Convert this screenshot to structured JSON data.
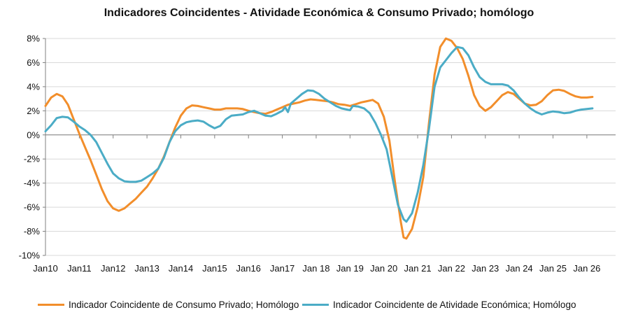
{
  "chart_data": {
    "type": "line",
    "title": "Indicadores Coincidentes  - Atividade Económica & Consumo Privado; homólogo",
    "xlabel": "",
    "ylabel": "",
    "ylim": [
      -10,
      8
    ],
    "y_ticks": [
      "-10%",
      "-8%",
      "-6%",
      "-4%",
      "-2%",
      "0%",
      "2%",
      "4%",
      "6%",
      "8%"
    ],
    "y_tick_values": [
      -10,
      -8,
      -6,
      -4,
      -2,
      0,
      2,
      4,
      6,
      8
    ],
    "x_tick_labels": [
      "Jan10",
      "Jan11",
      "Jan12",
      "Jan13",
      "Jan14",
      "Jan15",
      "Jan16",
      "Jan17",
      "Jan 18",
      "Jan 19",
      "Jan 20",
      "Jan 21",
      "Jan 22",
      "Jan 23",
      "Jan 24",
      "Jan 25",
      "Jan 26"
    ],
    "x_tick_years": [
      2010,
      2011,
      2012,
      2013,
      2014,
      2015,
      2016,
      2017,
      2018,
      2019,
      2020,
      2021,
      2022,
      2023,
      2024,
      2025,
      2026
    ],
    "grid": "horizontal",
    "legend_position": "bottom",
    "series": [
      {
        "name": "Indicador Coincidente de Consumo Privado; Homólogo",
        "color": "#F28E2B",
        "points": [
          [
            "2010-01",
            2.4
          ],
          [
            "2010-03",
            3.1
          ],
          [
            "2010-05",
            3.4
          ],
          [
            "2010-07",
            3.2
          ],
          [
            "2010-09",
            2.5
          ],
          [
            "2010-11",
            1.3
          ],
          [
            "2011-01",
            0.1
          ],
          [
            "2011-03",
            -1.0
          ],
          [
            "2011-05",
            -2.1
          ],
          [
            "2011-07",
            -3.3
          ],
          [
            "2011-09",
            -4.5
          ],
          [
            "2011-11",
            -5.5
          ],
          [
            "2012-01",
            -6.1
          ],
          [
            "2012-03",
            -6.3
          ],
          [
            "2012-05",
            -6.1
          ],
          [
            "2012-07",
            -5.7
          ],
          [
            "2012-09",
            -5.3
          ],
          [
            "2012-11",
            -4.8
          ],
          [
            "2013-01",
            -4.3
          ],
          [
            "2013-03",
            -3.6
          ],
          [
            "2013-05",
            -2.8
          ],
          [
            "2013-07",
            -1.8
          ],
          [
            "2013-09",
            -0.6
          ],
          [
            "2013-11",
            0.6
          ],
          [
            "2014-01",
            1.6
          ],
          [
            "2014-03",
            2.2
          ],
          [
            "2014-05",
            2.45
          ],
          [
            "2014-07",
            2.4
          ],
          [
            "2014-09",
            2.3
          ],
          [
            "2014-11",
            2.2
          ],
          [
            "2015-01",
            2.1
          ],
          [
            "2015-03",
            2.1
          ],
          [
            "2015-05",
            2.2
          ],
          [
            "2015-07",
            2.2
          ],
          [
            "2015-09",
            2.2
          ],
          [
            "2015-11",
            2.15
          ],
          [
            "2016-01",
            2.0
          ],
          [
            "2016-03",
            1.9
          ],
          [
            "2016-05",
            1.8
          ],
          [
            "2016-07",
            1.75
          ],
          [
            "2016-09",
            1.9
          ],
          [
            "2016-11",
            2.1
          ],
          [
            "2017-01",
            2.3
          ],
          [
            "2017-03",
            2.5
          ],
          [
            "2017-05",
            2.6
          ],
          [
            "2017-07",
            2.7
          ],
          [
            "2017-09",
            2.85
          ],
          [
            "2017-11",
            2.95
          ],
          [
            "2018-01",
            2.9
          ],
          [
            "2018-03",
            2.85
          ],
          [
            "2018-05",
            2.8
          ],
          [
            "2018-07",
            2.7
          ],
          [
            "2018-09",
            2.55
          ],
          [
            "2018-11",
            2.5
          ],
          [
            "2019-01",
            2.4
          ],
          [
            "2019-03",
            2.55
          ],
          [
            "2019-05",
            2.7
          ],
          [
            "2019-07",
            2.8
          ],
          [
            "2019-09",
            2.9
          ],
          [
            "2019-11",
            2.6
          ],
          [
            "2020-01",
            1.5
          ],
          [
            "2020-03",
            -0.5
          ],
          [
            "2020-05",
            -4.0
          ],
          [
            "2020-07",
            -7.2
          ],
          [
            "2020-08",
            -8.5
          ],
          [
            "2020-09",
            -8.6
          ],
          [
            "2020-11",
            -7.8
          ],
          [
            "2021-01",
            -6.0
          ],
          [
            "2021-03",
            -3.5
          ],
          [
            "2021-05",
            1.0
          ],
          [
            "2021-07",
            5.0
          ],
          [
            "2021-09",
            7.3
          ],
          [
            "2021-11",
            8.0
          ],
          [
            "2022-01",
            7.8
          ],
          [
            "2022-03",
            7.2
          ],
          [
            "2022-05",
            6.3
          ],
          [
            "2022-07",
            4.9
          ],
          [
            "2022-09",
            3.3
          ],
          [
            "2022-11",
            2.4
          ],
          [
            "2023-01",
            2.0
          ],
          [
            "2023-03",
            2.3
          ],
          [
            "2023-05",
            2.8
          ],
          [
            "2023-07",
            3.3
          ],
          [
            "2023-09",
            3.55
          ],
          [
            "2023-11",
            3.4
          ],
          [
            "2024-01",
            3.0
          ],
          [
            "2024-03",
            2.6
          ],
          [
            "2024-05",
            2.45
          ],
          [
            "2024-07",
            2.5
          ],
          [
            "2024-09",
            2.8
          ],
          [
            "2024-11",
            3.3
          ],
          [
            "2025-01",
            3.7
          ],
          [
            "2025-03",
            3.75
          ],
          [
            "2025-05",
            3.65
          ],
          [
            "2025-07",
            3.4
          ],
          [
            "2025-09",
            3.2
          ],
          [
            "2025-11",
            3.1
          ],
          [
            "2026-01",
            3.1
          ],
          [
            "2026-03",
            3.15
          ]
        ]
      },
      {
        "name": "Indicador Coincidente de Atividade Económica; Homólogo",
        "color": "#4BACC6",
        "points": [
          [
            "2010-01",
            0.3
          ],
          [
            "2010-03",
            0.8
          ],
          [
            "2010-05",
            1.4
          ],
          [
            "2010-07",
            1.5
          ],
          [
            "2010-09",
            1.45
          ],
          [
            "2010-11",
            1.1
          ],
          [
            "2011-01",
            0.7
          ],
          [
            "2011-03",
            0.4
          ],
          [
            "2011-05",
            0.0
          ],
          [
            "2011-07",
            -0.6
          ],
          [
            "2011-09",
            -1.5
          ],
          [
            "2011-11",
            -2.4
          ],
          [
            "2012-01",
            -3.2
          ],
          [
            "2012-03",
            -3.6
          ],
          [
            "2012-05",
            -3.85
          ],
          [
            "2012-07",
            -3.9
          ],
          [
            "2012-09",
            -3.9
          ],
          [
            "2012-11",
            -3.8
          ],
          [
            "2013-01",
            -3.5
          ],
          [
            "2013-03",
            -3.2
          ],
          [
            "2013-05",
            -2.8
          ],
          [
            "2013-07",
            -1.9
          ],
          [
            "2013-09",
            -0.6
          ],
          [
            "2013-11",
            0.3
          ],
          [
            "2014-01",
            0.8
          ],
          [
            "2014-03",
            1.05
          ],
          [
            "2014-05",
            1.15
          ],
          [
            "2014-07",
            1.2
          ],
          [
            "2014-09",
            1.1
          ],
          [
            "2014-11",
            0.8
          ],
          [
            "2015-01",
            0.55
          ],
          [
            "2015-03",
            0.75
          ],
          [
            "2015-05",
            1.3
          ],
          [
            "2015-07",
            1.6
          ],
          [
            "2015-09",
            1.65
          ],
          [
            "2015-11",
            1.7
          ],
          [
            "2016-01",
            1.9
          ],
          [
            "2016-03",
            2.0
          ],
          [
            "2016-05",
            1.8
          ],
          [
            "2016-07",
            1.6
          ],
          [
            "2016-09",
            1.55
          ],
          [
            "2016-11",
            1.75
          ],
          [
            "2017-01",
            2.0
          ],
          [
            "2017-02",
            2.3
          ],
          [
            "2017-03",
            1.9
          ],
          [
            "2017-04",
            2.6
          ],
          [
            "2017-06",
            3.0
          ],
          [
            "2017-08",
            3.4
          ],
          [
            "2017-10",
            3.7
          ],
          [
            "2017-12",
            3.65
          ],
          [
            "2018-02",
            3.4
          ],
          [
            "2018-04",
            3.0
          ],
          [
            "2018-06",
            2.7
          ],
          [
            "2018-08",
            2.4
          ],
          [
            "2018-10",
            2.2
          ],
          [
            "2018-12",
            2.1
          ],
          [
            "2019-01",
            2.05
          ],
          [
            "2019-02",
            2.4
          ],
          [
            "2019-04",
            2.35
          ],
          [
            "2019-06",
            2.2
          ],
          [
            "2019-08",
            1.8
          ],
          [
            "2019-10",
            1.0
          ],
          [
            "2019-12",
            0.0
          ],
          [
            "2020-02",
            -1.2
          ],
          [
            "2020-04",
            -3.5
          ],
          [
            "2020-06",
            -5.8
          ],
          [
            "2020-08",
            -7.0
          ],
          [
            "2020-09",
            -7.2
          ],
          [
            "2020-11",
            -6.5
          ],
          [
            "2021-01",
            -4.8
          ],
          [
            "2021-03",
            -2.5
          ],
          [
            "2021-05",
            0.5
          ],
          [
            "2021-07",
            4.0
          ],
          [
            "2021-09",
            5.6
          ],
          [
            "2021-11",
            6.2
          ],
          [
            "2022-01",
            6.8
          ],
          [
            "2022-03",
            7.3
          ],
          [
            "2022-05",
            7.2
          ],
          [
            "2022-07",
            6.6
          ],
          [
            "2022-09",
            5.6
          ],
          [
            "2022-11",
            4.8
          ],
          [
            "2023-01",
            4.4
          ],
          [
            "2023-03",
            4.2
          ],
          [
            "2023-05",
            4.2
          ],
          [
            "2023-07",
            4.2
          ],
          [
            "2023-09",
            4.1
          ],
          [
            "2023-11",
            3.7
          ],
          [
            "2024-01",
            3.1
          ],
          [
            "2024-03",
            2.6
          ],
          [
            "2024-05",
            2.2
          ],
          [
            "2024-07",
            1.9
          ],
          [
            "2024-09",
            1.7
          ],
          [
            "2024-11",
            1.85
          ],
          [
            "2025-01",
            1.95
          ],
          [
            "2025-03",
            1.9
          ],
          [
            "2025-05",
            1.8
          ],
          [
            "2025-07",
            1.85
          ],
          [
            "2025-09",
            2.0
          ],
          [
            "2025-11",
            2.1
          ],
          [
            "2026-01",
            2.15
          ],
          [
            "2026-03",
            2.2
          ]
        ]
      }
    ]
  }
}
